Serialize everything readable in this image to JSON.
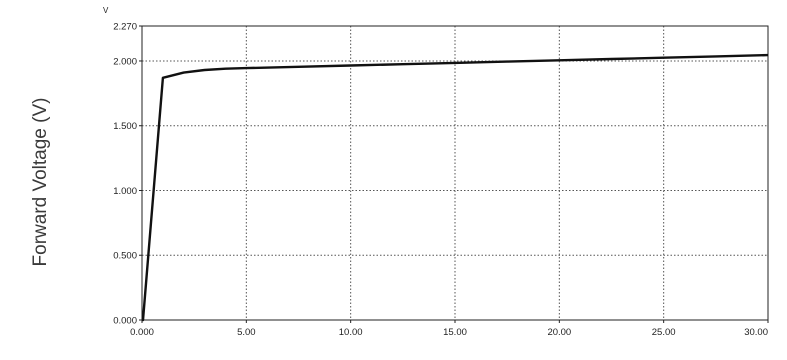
{
  "chart_data": {
    "type": "line",
    "title": "",
    "xlabel": "",
    "ylabel": "Forward Voltage (V)",
    "y_unit_label": "V",
    "xlim": [
      0,
      30
    ],
    "ylim": [
      0,
      2.27
    ],
    "grid": true,
    "grid_style": "dotted",
    "x_ticks": [
      {
        "value": 0,
        "label": "0.000"
      },
      {
        "value": 5,
        "label": "5.00"
      },
      {
        "value": 10,
        "label": "10.00"
      },
      {
        "value": 15,
        "label": "15.00"
      },
      {
        "value": 20,
        "label": "20.00"
      },
      {
        "value": 25,
        "label": "25.00"
      },
      {
        "value": 30,
        "label": "30.00"
      }
    ],
    "y_ticks": [
      {
        "value": 0,
        "label": "0.000"
      },
      {
        "value": 0.5,
        "label": "0.500"
      },
      {
        "value": 1.0,
        "label": "1.000"
      },
      {
        "value": 1.5,
        "label": "1.500"
      },
      {
        "value": 2.0,
        "label": "2.000"
      },
      {
        "value": 2.27,
        "label": "2.270"
      }
    ],
    "series": [
      {
        "color": "#111111",
        "x": [
          0,
          0.05,
          1.0,
          1.5,
          2.0,
          3.0,
          4.0,
          5.0,
          7.5,
          10.0,
          12.5,
          15.0,
          17.5,
          20.0,
          22.5,
          25.0,
          27.5,
          30.0
        ],
        "y": [
          0.0,
          0.0,
          1.87,
          1.89,
          1.91,
          1.93,
          1.94,
          1.945,
          1.955,
          1.965,
          1.975,
          1.985,
          1.995,
          2.005,
          2.015,
          2.025,
          2.035,
          2.045
        ]
      }
    ]
  }
}
